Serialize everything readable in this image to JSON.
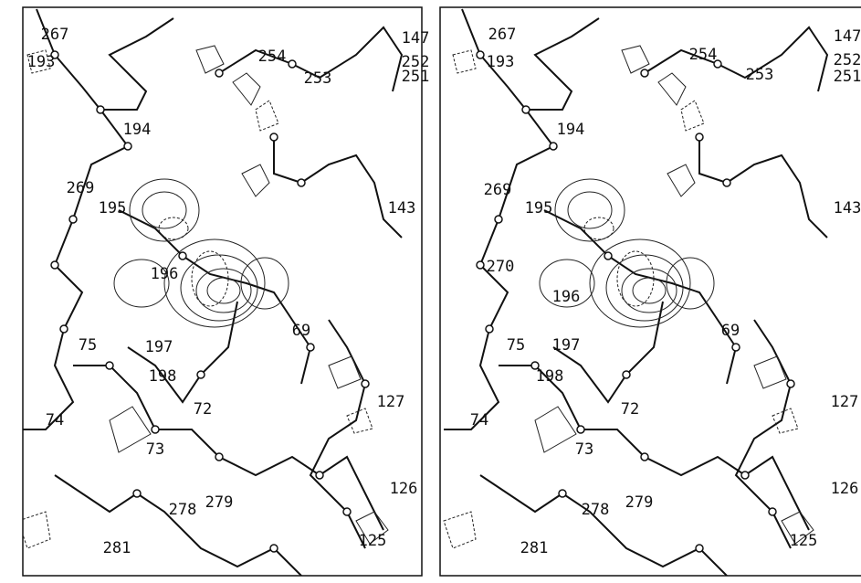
{
  "panels": [
    {
      "labels": [
        "267",
        "193",
        "254",
        "147",
        "252",
        "251",
        "253",
        "194",
        "269",
        "195",
        "143",
        "196",
        "69",
        "75",
        "197",
        "198",
        "127",
        "74",
        "72",
        "73",
        "126",
        "278",
        "279",
        "125",
        "281"
      ]
    },
    {
      "labels": [
        "267",
        "193",
        "254",
        "253",
        "147",
        "252",
        "251",
        "194",
        "269",
        "195",
        "143",
        "270",
        "196",
        "69",
        "75",
        "197",
        "198",
        "127",
        "74",
        "72",
        "73",
        "126",
        "278",
        "279",
        "125",
        "281"
      ]
    }
  ]
}
